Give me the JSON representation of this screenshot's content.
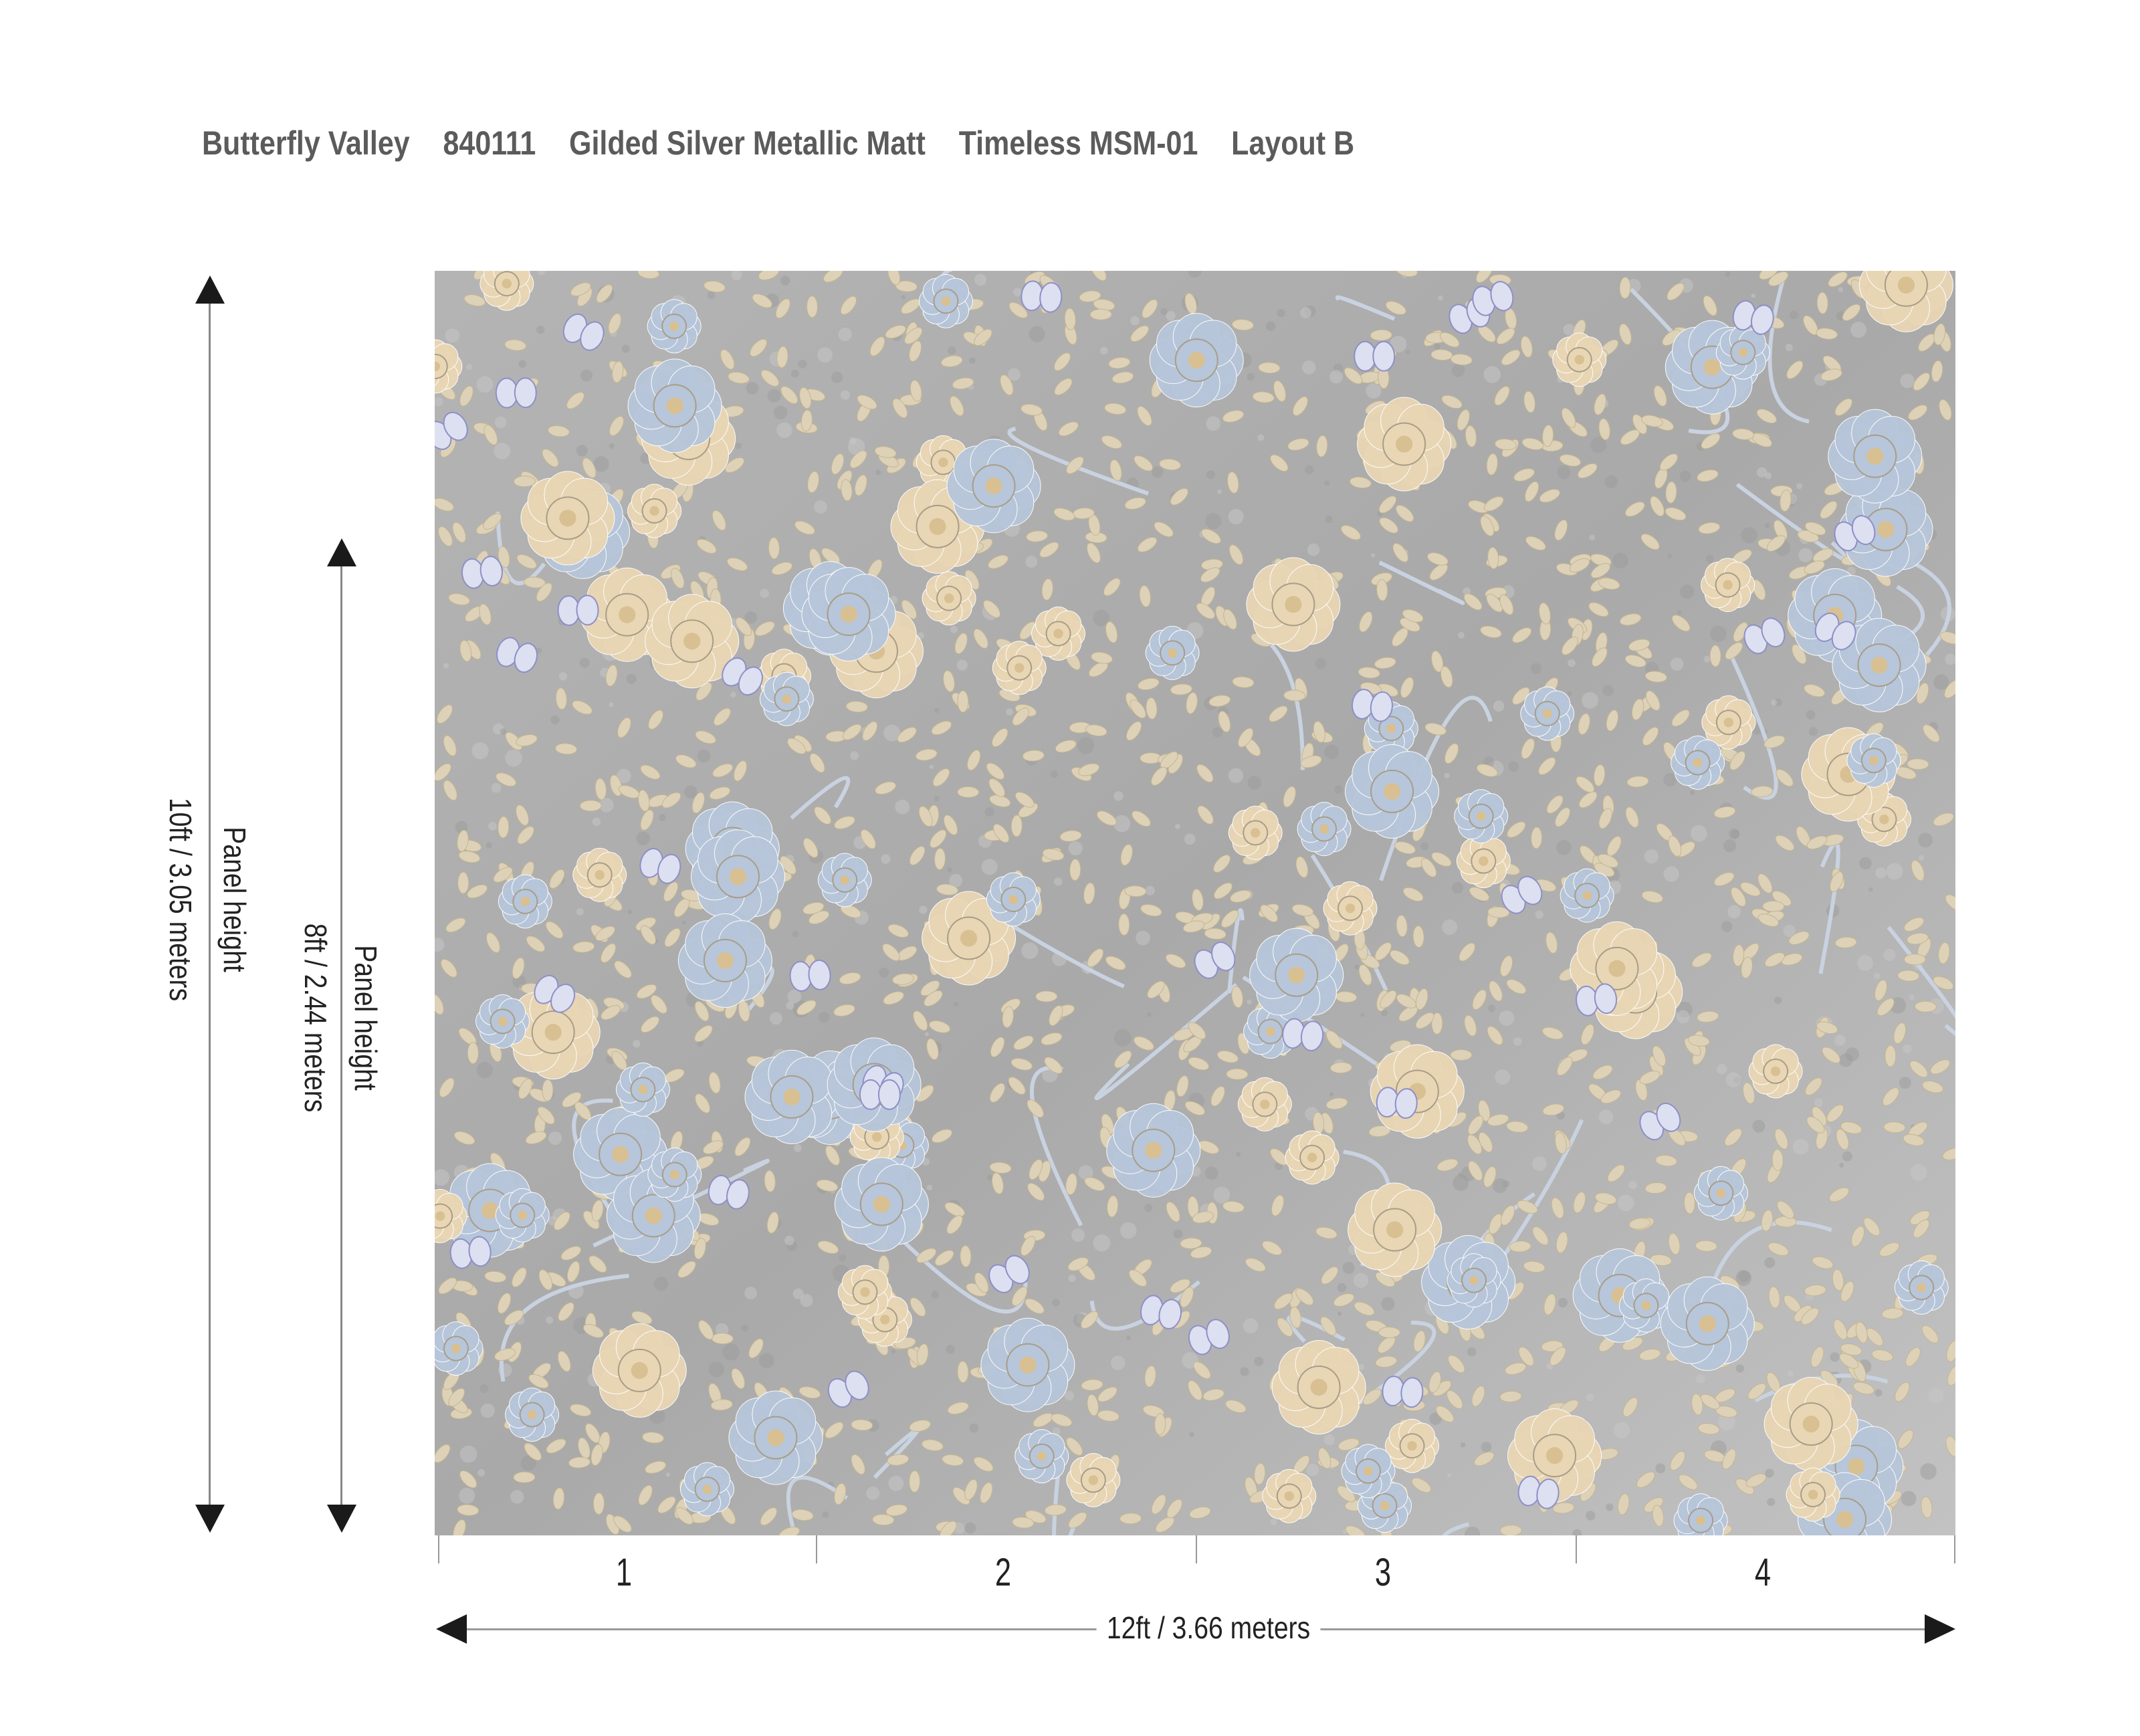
{
  "header": {
    "collection": "Butterfly Valley",
    "code": "840111",
    "finish": "Gilded Silver Metallic Matt",
    "series": "Timeless MSM-01",
    "layout": "Layout B"
  },
  "dimensions": {
    "outer_height_title": "Panel height",
    "outer_height_value": "10ft / 3.05 meters",
    "inner_height_title": "Panel height",
    "inner_height_value": "8ft / 2.44 meters",
    "width_value": "12ft  / 3.66 meters",
    "panels": [
      "1",
      "2",
      "3",
      "4"
    ]
  },
  "pattern": {
    "background": "#a9a9a9",
    "flower_beige": "#e9d6b4",
    "flower_blue": "#b7c6da",
    "leaf": "#ddd2b8",
    "butterfly": "#8e8fc7"
  }
}
